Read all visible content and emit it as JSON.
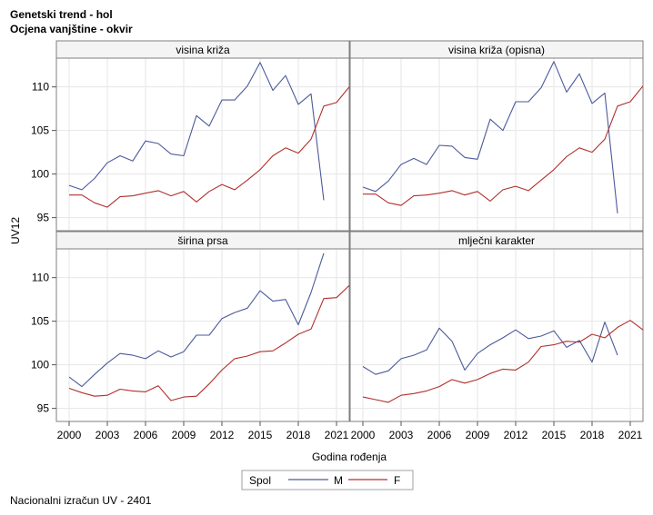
{
  "title": "Genetski trend - hol",
  "subtitle": "Ocjena vanjštine - okvir",
  "footnote": "Nacionalni izračun UV - 2401",
  "colors": {
    "M": "#4b5a9b",
    "F": "#b0302c",
    "frame": "#7f7f7f",
    "strip": "#f4f4f4"
  },
  "chart_data": {
    "type": "line",
    "xlabel": "Godina rođenja",
    "ylabel": "UV12",
    "xlim": [
      1999,
      2022
    ],
    "ylim": [
      93.5,
      113.3
    ],
    "xticks": [
      2000,
      2003,
      2006,
      2009,
      2012,
      2015,
      2018,
      2021
    ],
    "yticks": [
      95,
      100,
      105,
      110
    ],
    "legend": {
      "title": "Spol",
      "position": "bottom",
      "entries": [
        "M",
        "F"
      ]
    },
    "panels": [
      {
        "name": "visina križa",
        "series": [
          {
            "name": "M",
            "x": [
              2000,
              2001,
              2002,
              2003,
              2004,
              2005,
              2006,
              2007,
              2008,
              2009,
              2010,
              2011,
              2012,
              2013,
              2014,
              2015,
              2016,
              2017,
              2018,
              2019,
              2020
            ],
            "values": [
              98.7,
              98.2,
              99.5,
              101.3,
              102.1,
              101.5,
              103.8,
              103.5,
              102.3,
              102.1,
              106.7,
              105.5,
              108.5,
              108.5,
              110.1,
              112.8,
              109.6,
              111.3,
              108.0,
              109.2,
              97.0
            ]
          },
          {
            "name": "F",
            "x": [
              2000,
              2001,
              2002,
              2003,
              2004,
              2005,
              2006,
              2007,
              2008,
              2009,
              2010,
              2011,
              2012,
              2013,
              2014,
              2015,
              2016,
              2017,
              2018,
              2019,
              2020,
              2021,
              2022
            ],
            "values": [
              97.6,
              97.6,
              96.7,
              96.2,
              97.4,
              97.5,
              97.8,
              98.1,
              97.5,
              98.0,
              96.8,
              98.0,
              98.8,
              98.2,
              99.3,
              100.5,
              102.1,
              103.0,
              102.4,
              104.0,
              107.8,
              108.2,
              110.0
            ]
          }
        ]
      },
      {
        "name": "visina križa (opisna)",
        "series": [
          {
            "name": "M",
            "x": [
              2000,
              2001,
              2002,
              2003,
              2004,
              2005,
              2006,
              2007,
              2008,
              2009,
              2010,
              2011,
              2012,
              2013,
              2014,
              2015,
              2016,
              2017,
              2018,
              2019,
              2020
            ],
            "values": [
              98.5,
              98.0,
              99.2,
              101.1,
              101.8,
              101.1,
              103.3,
              103.2,
              101.9,
              101.7,
              106.3,
              105.0,
              108.3,
              108.3,
              109.9,
              112.9,
              109.4,
              111.5,
              108.1,
              109.3,
              95.5
            ]
          },
          {
            "name": "F",
            "x": [
              2000,
              2001,
              2002,
              2003,
              2004,
              2005,
              2006,
              2007,
              2008,
              2009,
              2010,
              2011,
              2012,
              2013,
              2014,
              2015,
              2016,
              2017,
              2018,
              2019,
              2020,
              2021,
              2022
            ],
            "values": [
              97.7,
              97.7,
              96.7,
              96.4,
              97.5,
              97.6,
              97.8,
              98.1,
              97.6,
              98.0,
              96.9,
              98.2,
              98.6,
              98.1,
              99.3,
              100.5,
              102.0,
              103.0,
              102.5,
              104.0,
              107.8,
              108.3,
              110.1
            ]
          }
        ]
      },
      {
        "name": "širina prsa",
        "series": [
          {
            "name": "M",
            "x": [
              2000,
              2001,
              2002,
              2003,
              2004,
              2005,
              2006,
              2007,
              2008,
              2009,
              2010,
              2011,
              2012,
              2013,
              2014,
              2015,
              2016,
              2017,
              2018,
              2019,
              2020
            ],
            "values": [
              98.6,
              97.5,
              98.9,
              100.2,
              101.3,
              101.1,
              100.7,
              101.6,
              100.9,
              101.5,
              103.4,
              103.4,
              105.3,
              106.0,
              106.5,
              108.5,
              107.3,
              107.5,
              104.6,
              108.3,
              112.8
            ]
          },
          {
            "name": "F",
            "x": [
              2000,
              2001,
              2002,
              2003,
              2004,
              2005,
              2006,
              2007,
              2008,
              2009,
              2010,
              2011,
              2012,
              2013,
              2014,
              2015,
              2016,
              2017,
              2018,
              2019,
              2020,
              2021,
              2022
            ],
            "values": [
              97.3,
              96.8,
              96.4,
              96.5,
              97.2,
              97.0,
              96.9,
              97.6,
              95.9,
              96.3,
              96.4,
              97.8,
              99.4,
              100.7,
              101.0,
              101.5,
              101.6,
              102.5,
              103.5,
              104.1,
              107.6,
              107.7,
              109.1
            ]
          }
        ]
      },
      {
        "name": "mlječni karakter",
        "series": [
          {
            "name": "M",
            "x": [
              2000,
              2001,
              2002,
              2003,
              2004,
              2005,
              2006,
              2007,
              2008,
              2009,
              2010,
              2011,
              2012,
              2013,
              2014,
              2015,
              2016,
              2017,
              2018,
              2019,
              2020
            ],
            "values": [
              99.8,
              98.9,
              99.3,
              100.7,
              101.1,
              101.7,
              104.2,
              102.7,
              99.4,
              101.3,
              102.3,
              103.1,
              104.0,
              103.0,
              103.3,
              103.9,
              102.0,
              102.8,
              100.3,
              104.9,
              101.1
            ]
          },
          {
            "name": "F",
            "x": [
              2000,
              2001,
              2002,
              2003,
              2004,
              2005,
              2006,
              2007,
              2008,
              2009,
              2010,
              2011,
              2012,
              2013,
              2014,
              2015,
              2016,
              2017,
              2018,
              2019,
              2020,
              2021,
              2022
            ],
            "values": [
              96.3,
              96.0,
              95.7,
              96.5,
              96.7,
              97.0,
              97.5,
              98.3,
              97.9,
              98.3,
              99.0,
              99.5,
              99.4,
              100.3,
              102.1,
              102.3,
              102.7,
              102.6,
              103.5,
              103.1,
              104.3,
              105.1,
              104.0
            ]
          }
        ]
      }
    ]
  }
}
